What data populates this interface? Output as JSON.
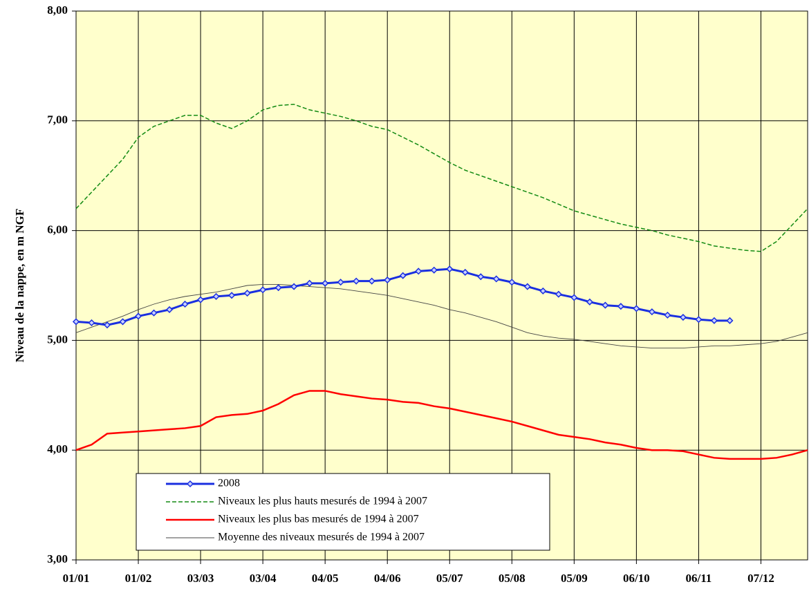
{
  "chart_data": {
    "type": "line",
    "y_label": "Niveau de la nappe, en m NGF",
    "categories": [
      "01/01",
      null,
      null,
      null,
      "01/02",
      null,
      null,
      null,
      "03/03",
      null,
      null,
      null,
      "03/04",
      null,
      null,
      null,
      "04/05",
      null,
      null,
      null,
      "04/06",
      null,
      null,
      null,
      "05/07",
      null,
      null,
      null,
      "05/08",
      null,
      null,
      null,
      "05/09",
      null,
      null,
      null,
      "06/10",
      null,
      null,
      null,
      "06/11",
      null,
      null,
      null,
      "07/12",
      null,
      null,
      null
    ],
    "series": [
      {
        "name": "2008",
        "color": "#1a2fe0",
        "style": "markers",
        "values": [
          5.17,
          5.16,
          5.14,
          5.17,
          5.22,
          5.25,
          5.28,
          5.33,
          5.37,
          5.4,
          5.41,
          5.43,
          5.46,
          5.48,
          5.49,
          5.52,
          5.52,
          5.53,
          5.54,
          5.54,
          5.55,
          5.59,
          5.63,
          5.64,
          5.65,
          5.62,
          5.58,
          5.56,
          5.53,
          5.49,
          5.45,
          5.42,
          5.39,
          5.35,
          5.32,
          5.31,
          5.29,
          5.26,
          5.23,
          5.21,
          5.19,
          5.18,
          5.18,
          null,
          null,
          null,
          null,
          null
        ]
      },
      {
        "name": "Niveaux les plus hauts mesurés de 1994 à 2007",
        "color": "#128a12",
        "style": "dashed",
        "values": [
          6.2,
          6.35,
          6.5,
          6.65,
          6.85,
          6.95,
          7.0,
          7.05,
          7.05,
          6.98,
          6.93,
          7.0,
          7.1,
          7.14,
          7.15,
          7.1,
          7.07,
          7.04,
          7.0,
          6.95,
          6.92,
          6.85,
          6.78,
          6.7,
          6.62,
          6.55,
          6.5,
          6.45,
          6.4,
          6.35,
          6.3,
          6.24,
          6.18,
          6.14,
          6.1,
          6.06,
          6.03,
          6.0,
          5.96,
          5.93,
          5.9,
          5.86,
          5.84,
          5.82,
          5.81,
          5.9,
          6.05,
          6.2
        ]
      },
      {
        "name": "Niveaux les plus bas mesurés de 1994 à 2007",
        "color": "#ff0000",
        "style": "thick",
        "values": [
          4.0,
          4.05,
          4.15,
          4.16,
          4.17,
          4.18,
          4.19,
          4.2,
          4.22,
          4.3,
          4.32,
          4.33,
          4.36,
          4.42,
          4.5,
          4.54,
          4.54,
          4.51,
          4.49,
          4.47,
          4.46,
          4.44,
          4.43,
          4.4,
          4.38,
          4.35,
          4.32,
          4.29,
          4.26,
          4.22,
          4.18,
          4.14,
          4.12,
          4.1,
          4.07,
          4.05,
          4.02,
          4.0,
          4.0,
          3.99,
          3.96,
          3.93,
          3.92,
          3.92,
          3.92,
          3.93,
          3.96,
          4.0
        ]
      },
      {
        "name": "Moyenne des niveaux mesurés de 1994 à 2007",
        "color": "#444444",
        "style": "thin",
        "values": [
          5.07,
          5.12,
          5.17,
          5.22,
          5.28,
          5.33,
          5.37,
          5.4,
          5.42,
          5.44,
          5.47,
          5.5,
          5.51,
          5.51,
          5.5,
          5.49,
          5.48,
          5.47,
          5.45,
          5.43,
          5.41,
          5.38,
          5.35,
          5.32,
          5.28,
          5.25,
          5.21,
          5.17,
          5.12,
          5.07,
          5.04,
          5.02,
          5.01,
          4.99,
          4.97,
          4.95,
          4.94,
          4.93,
          4.93,
          4.93,
          4.94,
          4.95,
          4.95,
          4.96,
          4.97,
          4.99,
          5.03,
          5.07
        ]
      }
    ],
    "ylim": [
      3,
      8
    ],
    "yticks": [
      {
        "value": 3,
        "label": "3,00"
      },
      {
        "value": 4,
        "label": "4,00"
      },
      {
        "value": 5,
        "label": "5,00"
      },
      {
        "value": 6,
        "label": "6,00"
      },
      {
        "value": 7,
        "label": "7,00"
      },
      {
        "value": 8,
        "label": "8,00"
      }
    ],
    "grid": true,
    "legend": "lower left",
    "background": "#ffffcc"
  }
}
